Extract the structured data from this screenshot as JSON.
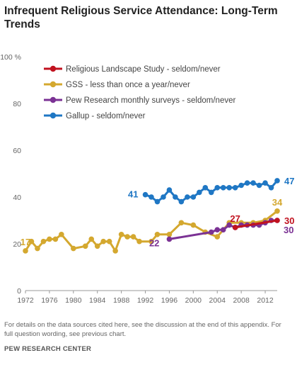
{
  "title": "Infrequent Religious Service Attendance: Long-Term Trends",
  "note": "For details on the data sources cited here, see the discussion at the end of this appendix. For full question wording, see previous chart.",
  "source": "PEW RESEARCH CENTER",
  "chart_data": {
    "type": "line",
    "title": "Infrequent Religious Service Attendance: Long-Term Trends",
    "xlabel": "",
    "ylabel": "",
    "xlim": [
      1972,
      2014
    ],
    "ylim": [
      0,
      100
    ],
    "y_ticks": [
      0,
      20,
      40,
      60,
      80,
      100
    ],
    "y_tick_labels": [
      "0",
      "20",
      "40",
      "60",
      "80",
      "100 %"
    ],
    "x_ticks": [
      1972,
      1976,
      1980,
      1984,
      1988,
      1992,
      1996,
      2000,
      2004,
      2008,
      2012
    ],
    "x_tick_labels": [
      "1972",
      "1976",
      "1980",
      "1984",
      "1988",
      "1992",
      "1996",
      "2000",
      "2004",
      "2008",
      "2012"
    ],
    "grid": false,
    "legend_position": "top-left",
    "series": [
      {
        "name": "Religious Landscape Study - seldom/never",
        "color": "#c1121f",
        "points": [
          [
            2007,
            27
          ],
          [
            2014,
            30
          ]
        ],
        "labels": [
          {
            "x": 2007,
            "y": 27,
            "text": "27",
            "pos": "above"
          },
          {
            "x": 2014,
            "y": 30,
            "text": "30",
            "pos": "right"
          }
        ]
      },
      {
        "name": "GSS - less than once a year/never",
        "color": "#d4a82f",
        "points": [
          [
            1972,
            17
          ],
          [
            1973,
            21
          ],
          [
            1974,
            18
          ],
          [
            1975,
            21
          ],
          [
            1976,
            22
          ],
          [
            1977,
            22
          ],
          [
            1978,
            24
          ],
          [
            1980,
            18
          ],
          [
            1982,
            19
          ],
          [
            1983,
            22
          ],
          [
            1984,
            19
          ],
          [
            1985,
            21
          ],
          [
            1986,
            21
          ],
          [
            1987,
            17
          ],
          [
            1988,
            24
          ],
          [
            1989,
            23
          ],
          [
            1990,
            23
          ],
          [
            1991,
            21
          ],
          [
            1993,
            21
          ],
          [
            1994,
            24
          ],
          [
            1996,
            24
          ],
          [
            1998,
            29
          ],
          [
            2000,
            28
          ],
          [
            2002,
            25
          ],
          [
            2004,
            23
          ],
          [
            2006,
            29
          ],
          [
            2008,
            29
          ],
          [
            2010,
            29
          ],
          [
            2012,
            30
          ],
          [
            2014,
            34
          ]
        ],
        "labels": [
          {
            "x": 1972,
            "y": 17,
            "text": "17",
            "pos": "above"
          },
          {
            "x": 2014,
            "y": 34,
            "text": "34",
            "pos": "above"
          }
        ]
      },
      {
        "name": "Pew Research monthly surveys - seldom/never",
        "color": "#7b3294",
        "points": [
          [
            1996,
            22
          ],
          [
            2003,
            25
          ],
          [
            2004,
            26
          ],
          [
            2005,
            26
          ],
          [
            2006,
            28
          ],
          [
            2007,
            27
          ],
          [
            2008,
            28
          ],
          [
            2009,
            28
          ],
          [
            2010,
            28
          ],
          [
            2011,
            28
          ],
          [
            2012,
            29
          ],
          [
            2013,
            30
          ],
          [
            2014,
            30
          ]
        ],
        "labels": [
          {
            "x": 1996,
            "y": 22,
            "text": "22",
            "pos": "below-left"
          },
          {
            "x": 2014,
            "y": 30,
            "text": "30",
            "pos": "below-right"
          }
        ]
      },
      {
        "name": "Gallup - seldom/never",
        "color": "#1f77c4",
        "points": [
          [
            1992,
            41
          ],
          [
            1993,
            40
          ],
          [
            1994,
            38
          ],
          [
            1995,
            40
          ],
          [
            1996,
            43
          ],
          [
            1997,
            40
          ],
          [
            1998,
            38
          ],
          [
            1999,
            40
          ],
          [
            2000,
            40
          ],
          [
            2001,
            42
          ],
          [
            2002,
            44
          ],
          [
            2003,
            42
          ],
          [
            2004,
            44
          ],
          [
            2005,
            44
          ],
          [
            2006,
            44
          ],
          [
            2007,
            44
          ],
          [
            2008,
            45
          ],
          [
            2009,
            46
          ],
          [
            2010,
            46
          ],
          [
            2011,
            45
          ],
          [
            2012,
            46
          ],
          [
            2013,
            44
          ],
          [
            2014,
            47
          ]
        ],
        "labels": [
          {
            "x": 1992,
            "y": 41,
            "text": "41",
            "pos": "left"
          },
          {
            "x": 2014,
            "y": 47,
            "text": "47",
            "pos": "right"
          }
        ]
      }
    ]
  }
}
